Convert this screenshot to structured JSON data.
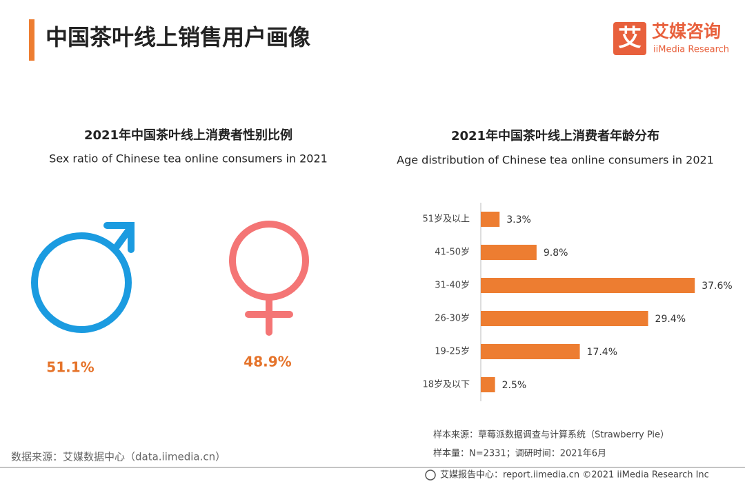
{
  "header": {
    "title": "中国茶叶线上销售用户画像",
    "logo_mark": "艾",
    "logo_name": "艾媒咨询",
    "logo_sub": "iiMedia Research"
  },
  "chart_data": [
    {
      "type": "pictograph",
      "title": "2021年中国茶叶线上消费者性别比例",
      "subtitle": "Sex ratio of Chinese tea online consumers in 2021",
      "values": [
        51.1,
        48.9
      ],
      "value_labels": [
        "51.1%",
        "48.9%"
      ],
      "colors": [
        "#1b9be0",
        "#f47575"
      ],
      "label_color": "#e5732a"
    },
    {
      "type": "bar",
      "orientation": "horizontal",
      "title": "2021年中国茶叶线上消费者年龄分布",
      "subtitle": "Age distribution of Chinese  tea online consumers in 2021",
      "categories": [
        "51岁及以上",
        "41-50岁",
        "31-40岁",
        "26-30岁",
        "19-25岁",
        "18岁及以下"
      ],
      "values": [
        3.3,
        9.8,
        37.6,
        29.4,
        17.4,
        2.5
      ],
      "value_labels": [
        "3.3%",
        "9.8%",
        "37.6%",
        "29.4%",
        "17.4%",
        "2.5%"
      ],
      "color": "#ed7d31"
    }
  ],
  "footer": {
    "source": "数据来源：艾媒数据中心（data.iimedia.cn）",
    "sample_source": "样本来源：草莓派数据调查与计算系统（Strawberry Pie）",
    "sample_size": "样本量：N=2331；调研时间：2021年6月",
    "copyright": "艾媒报告中心：report.iimedia.cn   ©2021  iiMedia Research  Inc"
  }
}
